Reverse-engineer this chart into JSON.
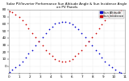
{
  "title": "Solar PV/Inverter Performance Sun Altitude Angle & Sun Incidence Angle on PV Panels",
  "legend_labels": [
    "Sun Altitude",
    "Sun Incidence"
  ],
  "legend_colors": [
    "#0000cc",
    "#cc0000"
  ],
  "bg_color": "#ffffff",
  "plot_bg_color": "#ffffff",
  "grid_color": "#cccccc",
  "text_color": "#000000",
  "ylim": [
    -10,
    80
  ],
  "ytick_values": [
    0,
    10,
    20,
    30,
    40,
    50,
    60,
    70,
    80
  ],
  "xlim": [
    0,
    1
  ],
  "sun_altitude_x": [
    0.01,
    0.03,
    0.06,
    0.09,
    0.12,
    0.15,
    0.17,
    0.2,
    0.23,
    0.26,
    0.29,
    0.32,
    0.35,
    0.38,
    0.4,
    0.43,
    0.46,
    0.49,
    0.52,
    0.55,
    0.57,
    0.6,
    0.63,
    0.66,
    0.69,
    0.72,
    0.75,
    0.78,
    0.8,
    0.83,
    0.86,
    0.89,
    0.92,
    0.95,
    0.97
  ],
  "sun_altitude_y": [
    -8,
    -5,
    -2,
    2,
    6,
    12,
    18,
    23,
    29,
    35,
    41,
    47,
    52,
    56,
    60,
    62,
    63,
    63,
    62,
    59,
    56,
    52,
    47,
    41,
    35,
    29,
    23,
    18,
    12,
    6,
    2,
    -2,
    -5,
    -8,
    -9
  ],
  "sun_incidence_x": [
    0.01,
    0.03,
    0.06,
    0.09,
    0.12,
    0.15,
    0.17,
    0.2,
    0.23,
    0.26,
    0.29,
    0.32,
    0.35,
    0.38,
    0.4,
    0.43,
    0.46,
    0.49,
    0.52,
    0.55,
    0.57,
    0.6,
    0.63,
    0.66,
    0.69,
    0.72,
    0.75,
    0.78,
    0.8,
    0.83,
    0.86,
    0.89,
    0.92,
    0.95,
    0.97
  ],
  "sun_incidence_y": [
    78,
    76,
    73,
    69,
    65,
    59,
    53,
    47,
    41,
    35,
    29,
    23,
    18,
    14,
    10,
    8,
    7,
    7,
    8,
    10,
    14,
    18,
    23,
    29,
    35,
    41,
    47,
    53,
    59,
    65,
    69,
    73,
    76,
    78,
    79
  ],
  "marker_size": 1.5,
  "title_fontsize": 3.0,
  "tick_fontsize": 3.0,
  "legend_fontsize": 2.5
}
